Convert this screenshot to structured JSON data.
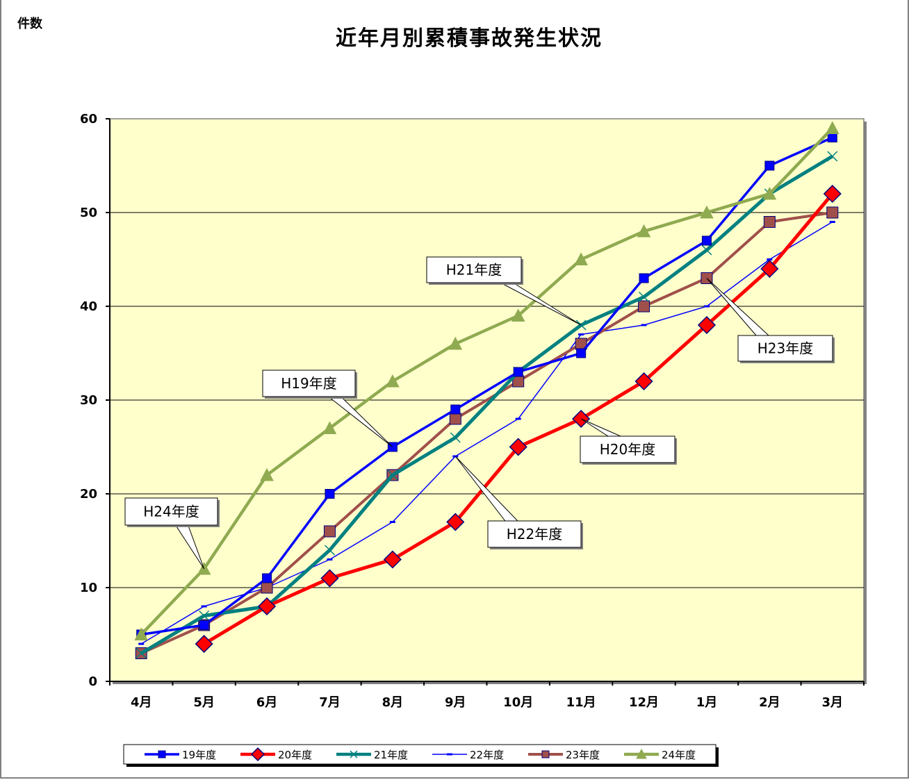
{
  "chart_data": {
    "type": "line",
    "title": "近年月別累積事故発生状況",
    "ylabel": "件数",
    "xlabel": "",
    "ylim": [
      0,
      60
    ],
    "yticks": [
      0,
      10,
      20,
      30,
      40,
      50,
      60
    ],
    "grid": true,
    "legend_position": "bottom",
    "categories": [
      "4月",
      "5月",
      "6月",
      "7月",
      "8月",
      "9月",
      "10月",
      "11月",
      "12月",
      "1月",
      "2月",
      "3月"
    ],
    "series": [
      {
        "name": "19年度",
        "color": "#0000ff",
        "marker": "square",
        "values": [
          5,
          6,
          11,
          20,
          25,
          29,
          33,
          35,
          43,
          47,
          55,
          58
        ]
      },
      {
        "name": "20年度",
        "color": "#ff0000",
        "marker": "diamond",
        "values": [
          null,
          4,
          8,
          11,
          13,
          17,
          25,
          28,
          32,
          38,
          44,
          52
        ]
      },
      {
        "name": "21年度",
        "color": "#008080",
        "marker": "x",
        "values": [
          3,
          7,
          8,
          14,
          22,
          26,
          33,
          38,
          41,
          46,
          52,
          56
        ]
      },
      {
        "name": "22年度",
        "color": "#0000ff",
        "marker": "dash",
        "values": [
          4,
          8,
          10,
          13,
          17,
          24,
          28,
          37,
          38,
          40,
          45,
          49
        ]
      },
      {
        "name": "23年度",
        "color": "#a0504b",
        "marker": "square",
        "values": [
          3,
          6,
          10,
          16,
          22,
          28,
          32,
          36,
          40,
          43,
          49,
          50
        ]
      },
      {
        "name": "24年度",
        "color": "#8faa50",
        "marker": "triangle",
        "values": [
          5,
          12,
          22,
          27,
          32,
          36,
          39,
          45,
          48,
          50,
          52,
          59
        ]
      }
    ],
    "annotations": [
      {
        "text": "H24年度",
        "series": "24年度",
        "category": "5月"
      },
      {
        "text": "H19年度",
        "series": "19年度",
        "category": "8月"
      },
      {
        "text": "H21年度",
        "series": "21年度",
        "category": "11月"
      },
      {
        "text": "H22年度",
        "series": "22年度",
        "category": "9月"
      },
      {
        "text": "H20年度",
        "series": "20年度",
        "category": "11月"
      },
      {
        "text": "H23年度",
        "series": "23年度",
        "category": "1月"
      }
    ],
    "plot_background": "#ffffcc"
  }
}
